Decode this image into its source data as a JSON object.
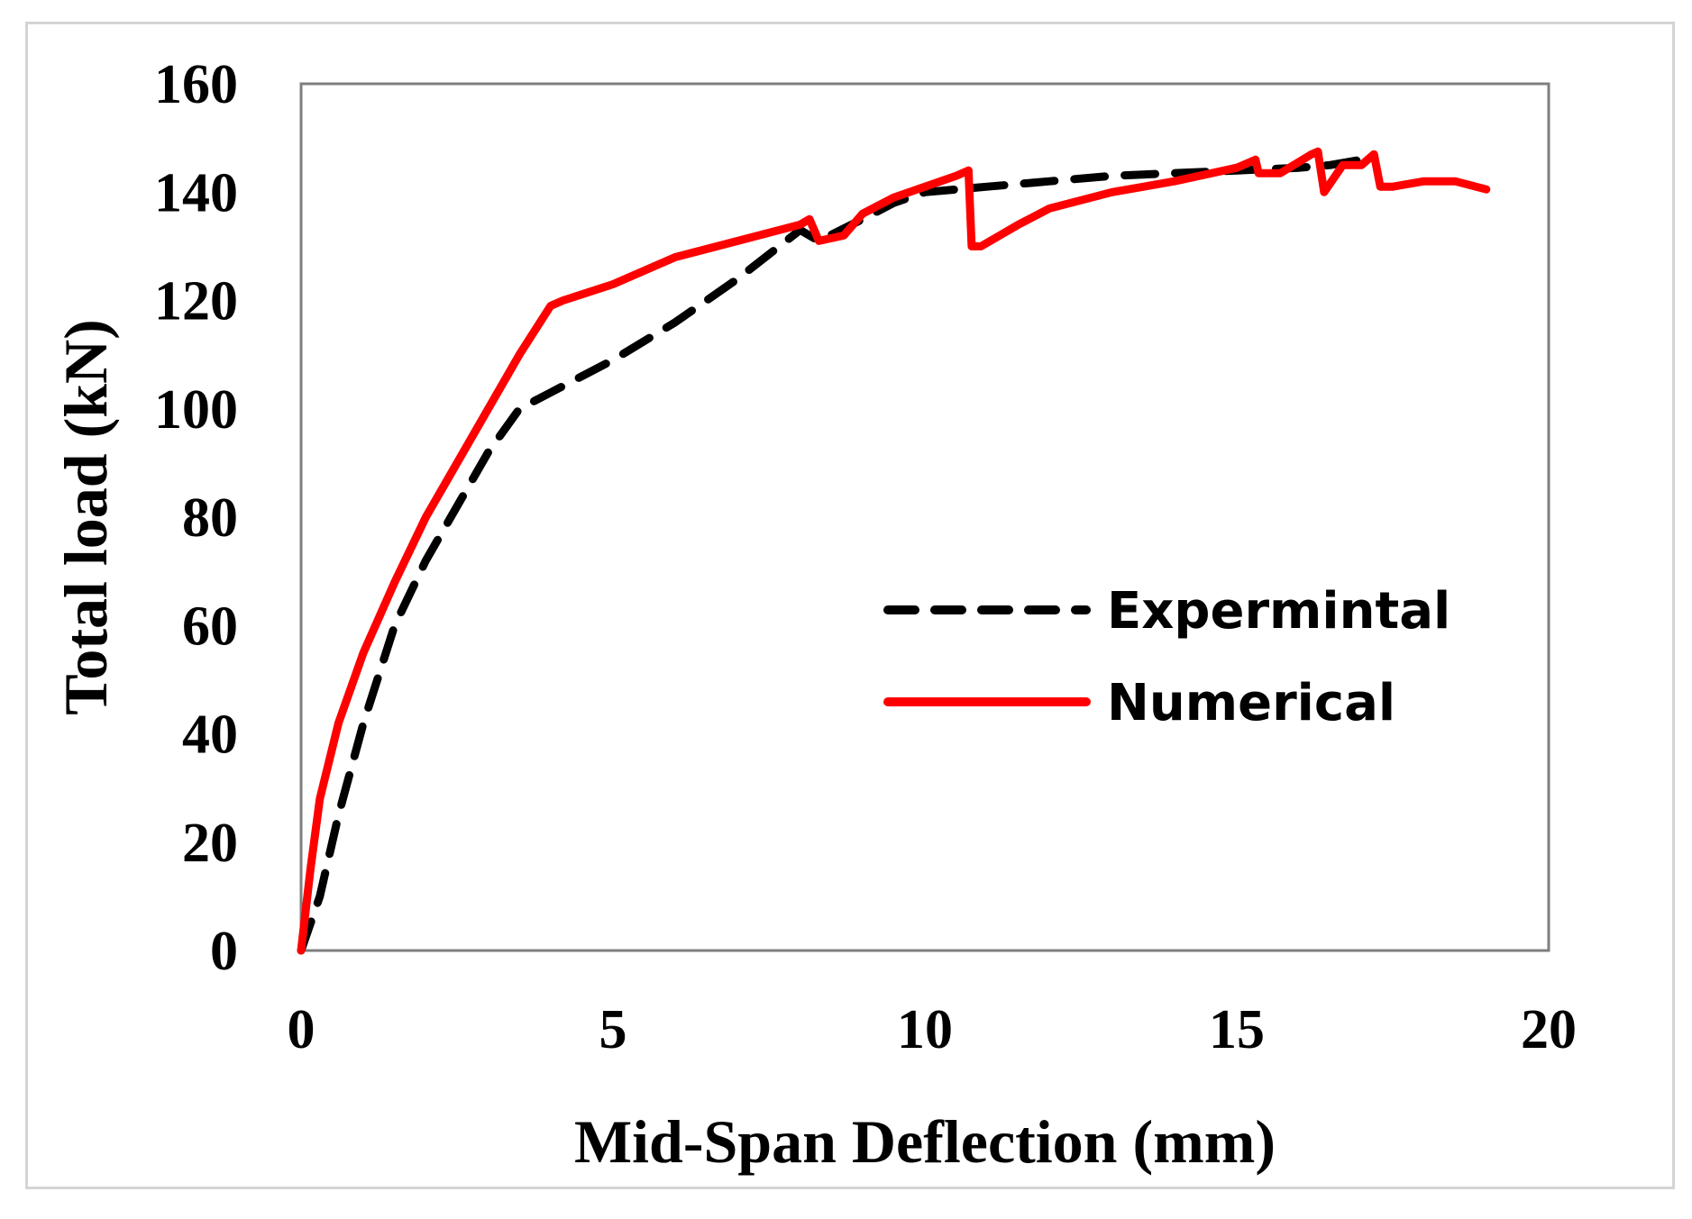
{
  "chart_data": {
    "type": "line",
    "title": "",
    "xlabel": "Mid-Span Deflection (mm)",
    "ylabel": "Total load (kN)",
    "xlim": [
      0,
      20
    ],
    "ylim": [
      0,
      160
    ],
    "xticks": [
      0,
      5,
      10,
      15,
      20
    ],
    "yticks": [
      0,
      20,
      40,
      60,
      80,
      100,
      120,
      140,
      160
    ],
    "xtick_labels": [
      "0",
      "5",
      "10",
      "15",
      "20"
    ],
    "ytick_labels": [
      "0",
      "20",
      "40",
      "60",
      "80",
      "100",
      "120",
      "140",
      "160"
    ],
    "grid": false,
    "legend_position": "center-right",
    "series": [
      {
        "name": "Expermintal",
        "color": "#000000",
        "style": "dashed",
        "x": [
          0,
          0.3,
          0.6,
          1.0,
          1.5,
          2.0,
          2.5,
          3.0,
          3.5,
          4.0,
          5.0,
          6.0,
          7.0,
          8.0,
          8.3,
          9.0,
          9.5,
          10.0,
          11.0,
          12.0,
          13.0,
          14.0,
          15.0,
          16.0,
          16.5,
          17.0
        ],
        "y": [
          0,
          10,
          25,
          42,
          60,
          72,
          82,
          92,
          100,
          103,
          109,
          116,
          124,
          133,
          131,
          135,
          138,
          140,
          141,
          142,
          143,
          143.5,
          144,
          144.5,
          145,
          146
        ]
      },
      {
        "name": "Numerical",
        "color": "#ff0000",
        "style": "solid",
        "x": [
          0,
          0.15,
          0.3,
          0.6,
          1.0,
          1.5,
          2.0,
          2.5,
          3.0,
          3.5,
          4.0,
          4.2,
          5.0,
          6.0,
          7.0,
          8.0,
          8.15,
          8.3,
          8.7,
          9.0,
          9.5,
          10.0,
          10.5,
          10.7,
          10.75,
          10.9,
          11.5,
          12.0,
          13.0,
          14.0,
          15.0,
          15.3,
          15.35,
          15.7,
          16.2,
          16.3,
          16.4,
          16.7,
          17.0,
          17.2,
          17.3,
          17.5,
          18.0,
          18.5,
          19.0
        ],
        "y": [
          0,
          15,
          28,
          42,
          55,
          68,
          80,
          90,
          100,
          110,
          119,
          120,
          123,
          128,
          131,
          134,
          135,
          131,
          132,
          136,
          139,
          141,
          143,
          144,
          130,
          130,
          134,
          137,
          140,
          142,
          144.5,
          146,
          143.5,
          143.5,
          147,
          147.5,
          140,
          145,
          145,
          147,
          141,
          141,
          142,
          142,
          140.5
        ]
      }
    ]
  }
}
